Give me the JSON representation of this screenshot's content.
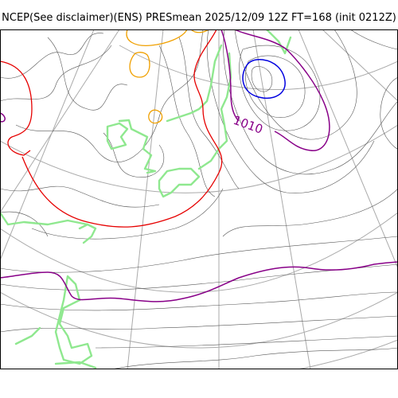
{
  "title": "NCEP(See disclaimer)(ENS) PRESmean 2025/12/09 12Z FT=168 (init 0212Z)",
  "contour_labels": [
    {
      "text": "1010",
      "color": "#880088"
    }
  ],
  "colors": {
    "background": "#ffffff",
    "frame": "#000000",
    "grid": "#aaaaaa",
    "coastline": "#8fe88f",
    "isobar_thin": "#555555",
    "isobar_red": "#e60000",
    "isobar_orange": "#f0a000",
    "isobar_purple": "#880088",
    "isobar_blue": "#0000e0"
  }
}
